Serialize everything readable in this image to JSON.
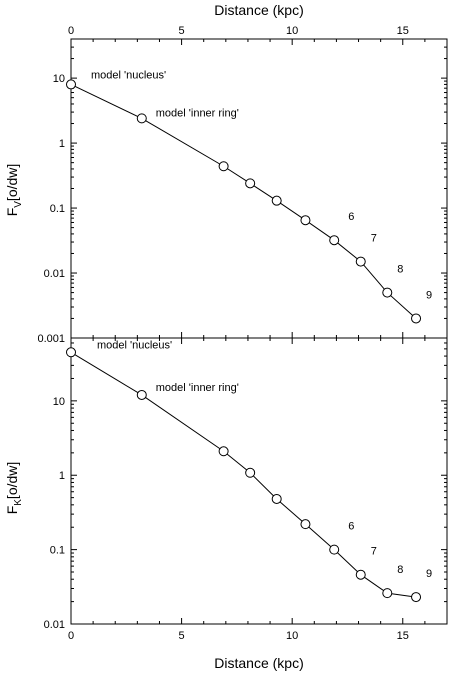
{
  "chart_data": [
    {
      "type": "line",
      "top_xlabel": "Distance (kpc)",
      "ylabel": "F",
      "ylabel_sub": "V",
      "ylabel_suffix": "[o/dw]",
      "yscale": "log",
      "xlim": [
        0,
        17
      ],
      "ylim": [
        0.001,
        40
      ],
      "x_ticks": [
        0,
        5,
        10,
        15
      ],
      "x_tick_labels": [
        "0",
        "5",
        "10",
        "15"
      ],
      "y_ticks": [
        0.001,
        0.01,
        0.1,
        1,
        10
      ],
      "y_tick_labels": [
        "0.001",
        "0.01",
        "0.1",
        "1",
        "10"
      ],
      "series": [
        {
          "x": [
            0.0,
            3.2,
            6.9,
            8.1,
            9.3,
            10.6,
            11.9,
            13.1,
            14.3,
            15.6
          ],
          "values": [
            8.0,
            2.4,
            0.44,
            0.24,
            0.13,
            0.065,
            0.032,
            0.015,
            0.005,
            0.002
          ]
        }
      ],
      "annotations": [
        {
          "text": "model 'nucleus'",
          "x": 0.0,
          "y": 8.0
        },
        {
          "text": "model 'inner ring'",
          "x": 3.2,
          "y": 2.4
        },
        {
          "text": "6",
          "x": 11.9,
          "y": 0.032
        },
        {
          "text": "7",
          "x": 13.1,
          "y": 0.015
        },
        {
          "text": "8",
          "x": 14.3,
          "y": 0.005
        },
        {
          "text": "9",
          "x": 15.6,
          "y": 0.002
        }
      ]
    },
    {
      "type": "line",
      "xlabel": "Distance (kpc)",
      "ylabel": "F",
      "ylabel_sub": "K",
      "ylabel_suffix": "[o/dw]",
      "yscale": "log",
      "xlim": [
        0,
        17
      ],
      "ylim": [
        0.01,
        70
      ],
      "x_ticks": [
        0,
        5,
        10,
        15
      ],
      "x_tick_labels": [
        "0",
        "5",
        "10",
        "15"
      ],
      "y_ticks": [
        0.01,
        0.1,
        1,
        10
      ],
      "y_tick_labels": [
        "0.01",
        "0.1",
        "1",
        "10"
      ],
      "series": [
        {
          "x": [
            0.0,
            3.2,
            6.9,
            8.1,
            9.3,
            10.6,
            11.9,
            13.1,
            14.3,
            15.6
          ],
          "values": [
            45,
            12,
            2.1,
            1.08,
            0.48,
            0.22,
            0.1,
            0.046,
            0.026,
            0.023
          ]
        }
      ],
      "annotations": [
        {
          "text": "model 'nucleus'",
          "x": 0.0,
          "y": 45
        },
        {
          "text": "model 'inner ring'",
          "x": 3.2,
          "y": 12
        },
        {
          "text": "6",
          "x": 11.9,
          "y": 0.1
        },
        {
          "text": "7",
          "x": 13.1,
          "y": 0.046
        },
        {
          "text": "8",
          "x": 14.3,
          "y": 0.026
        },
        {
          "text": "9",
          "x": 15.6,
          "y": 0.023
        }
      ]
    }
  ]
}
